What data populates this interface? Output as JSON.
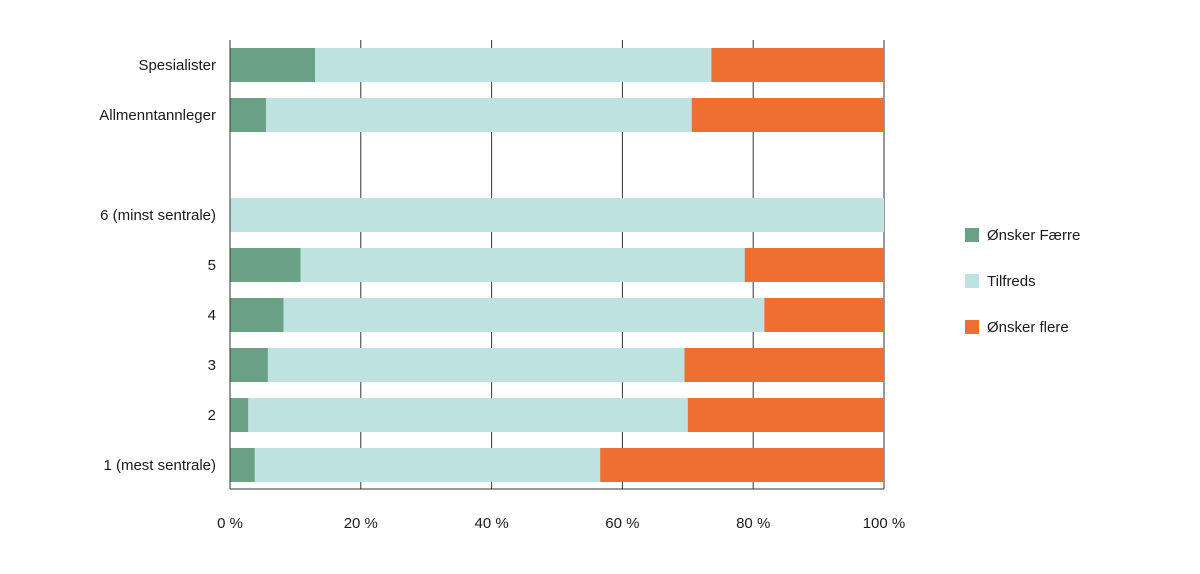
{
  "chart_data": {
    "type": "bar",
    "orientation": "horizontal",
    "stacked": true,
    "categories": [
      "Spesialister",
      "Allmenntannleger",
      "",
      "6 (minst sentrale)",
      "5",
      "4",
      "3",
      "2",
      "1 (mest sentrale)"
    ],
    "series": [
      {
        "name": "Ønsker Færre",
        "color": "#6aa084",
        "values": [
          13,
          5.5,
          null,
          0,
          10.8,
          8.2,
          5.8,
          2.8,
          3.8
        ]
      },
      {
        "name": "Tilfreds",
        "color": "#bde2e0",
        "values": [
          60.6,
          65.1,
          null,
          100,
          67.9,
          73.5,
          63.7,
          67.2,
          52.8
        ]
      },
      {
        "name": "Ønsker flere",
        "color": "#ee6f2f",
        "values": [
          26.4,
          29.4,
          null,
          0,
          21.3,
          18.3,
          30.5,
          30,
          43.4
        ]
      }
    ],
    "x_ticks": [
      "0 %",
      "20 %",
      "40 %",
      "60 %",
      "80 %",
      "100 %"
    ],
    "xlim": [
      0,
      100
    ],
    "grid": "vertical",
    "legend_position": "right",
    "title": "",
    "xlabel": "",
    "ylabel": ""
  }
}
